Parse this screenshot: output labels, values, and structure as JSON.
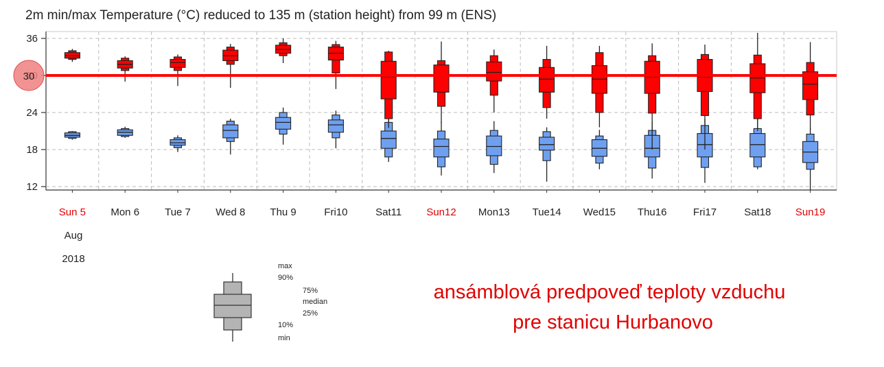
{
  "chart_data": {
    "type": "boxplot",
    "title": "2m min/max Temperature (°C) reduced to 135 m (station height) from 99 m (ENS)",
    "yticks": [
      12,
      18,
      24,
      30,
      36
    ],
    "ylim": [
      11.5,
      36.9
    ],
    "grid": true,
    "categories": [
      "Sun 5",
      "Mon 6",
      "Tue 7",
      "Wed 8",
      "Thu 9",
      "Fri10",
      "Sat11",
      "Sun12",
      "Mon13",
      "Tue14",
      "Wed15",
      "Thu16",
      "Fri17",
      "Sat18",
      "Sun19"
    ],
    "weekend_days": [
      "Sun 5",
      "Sun12",
      "Sun19"
    ],
    "xsub": [
      "Aug",
      "2018"
    ],
    "threshold": {
      "value": 30,
      "color": "#ff0000",
      "marker_label": "30"
    },
    "series": [
      {
        "name": "max",
        "color": "#ff0000",
        "stats": [
          {
            "min": 32.2,
            "p10": 32.6,
            "p25": 32.8,
            "median": 33.2,
            "p75": 33.7,
            "p90": 34.0,
            "max": 34.3
          },
          {
            "min": 29.0,
            "p10": 30.8,
            "p25": 31.2,
            "median": 31.8,
            "p75": 32.4,
            "p90": 32.8,
            "max": 33.1
          },
          {
            "min": 28.3,
            "p10": 30.8,
            "p25": 31.3,
            "median": 32.1,
            "p75": 32.6,
            "p90": 33.0,
            "max": 33.4
          },
          {
            "min": 28.0,
            "p10": 31.8,
            "p25": 32.4,
            "median": 33.2,
            "p75": 34.1,
            "p90": 34.6,
            "max": 35.1
          },
          {
            "min": 32.0,
            "p10": 33.2,
            "p25": 33.6,
            "median": 34.2,
            "p75": 34.9,
            "p90": 35.3,
            "max": 36.0
          },
          {
            "min": 27.8,
            "p10": 30.4,
            "p25": 32.5,
            "median": 33.6,
            "p75": 34.6,
            "p90": 35.0,
            "max": 35.6
          },
          {
            "min": 21.5,
            "p10": 23.0,
            "p25": 26.2,
            "median": 29.8,
            "p75": 32.3,
            "p90": 33.8,
            "max": 34.0
          },
          {
            "min": 22.3,
            "p10": 25.0,
            "p25": 27.3,
            "median": 30.0,
            "p75": 31.7,
            "p90": 32.4,
            "max": 35.5
          },
          {
            "min": 24.0,
            "p10": 26.8,
            "p25": 29.1,
            "median": 30.5,
            "p75": 32.2,
            "p90": 33.2,
            "max": 34.2
          },
          {
            "min": 23.0,
            "p10": 24.8,
            "p25": 27.3,
            "median": 29.4,
            "p75": 31.3,
            "p90": 32.6,
            "max": 34.8
          },
          {
            "min": 21.6,
            "p10": 24.0,
            "p25": 27.1,
            "median": 29.4,
            "p75": 31.6,
            "p90": 33.7,
            "max": 34.8
          },
          {
            "min": 18.0,
            "p10": 23.9,
            "p25": 27.1,
            "median": 29.8,
            "p75": 32.3,
            "p90": 33.2,
            "max": 35.2
          },
          {
            "min": 18.0,
            "p10": 23.5,
            "p25": 27.4,
            "median": 29.8,
            "p75": 32.6,
            "p90": 33.4,
            "max": 35.0
          },
          {
            "min": 21.0,
            "p10": 23.0,
            "p25": 27.2,
            "median": 29.6,
            "p75": 31.9,
            "p90": 33.3,
            "max": 36.9
          },
          {
            "min": 21.2,
            "p10": 23.6,
            "p25": 26.1,
            "median": 28.6,
            "p75": 30.6,
            "p90": 32.1,
            "max": 35.4
          }
        ]
      },
      {
        "name": "min",
        "color": "#6fa0f0",
        "stats": [
          {
            "min": 19.6,
            "p10": 19.8,
            "p25": 20.0,
            "median": 20.3,
            "p75": 20.7,
            "p90": 20.9,
            "max": 21.0
          },
          {
            "min": 19.9,
            "p10": 20.1,
            "p25": 20.3,
            "median": 20.8,
            "p75": 21.2,
            "p90": 21.4,
            "max": 21.7
          },
          {
            "min": 17.6,
            "p10": 18.3,
            "p25": 18.7,
            "median": 19.1,
            "p75": 19.6,
            "p90": 19.9,
            "max": 20.3
          },
          {
            "min": 17.2,
            "p10": 19.3,
            "p25": 19.9,
            "median": 21.1,
            "p75": 22.0,
            "p90": 22.6,
            "max": 23.0
          },
          {
            "min": 18.8,
            "p10": 20.5,
            "p25": 21.3,
            "median": 22.4,
            "p75": 23.2,
            "p90": 24.0,
            "max": 24.8
          },
          {
            "min": 18.2,
            "p10": 19.9,
            "p25": 20.8,
            "median": 22.0,
            "p75": 22.8,
            "p90": 23.6,
            "max": 24.3
          },
          {
            "min": 16.0,
            "p10": 16.8,
            "p25": 18.2,
            "median": 19.8,
            "p75": 21.0,
            "p90": 22.4,
            "max": 23.3
          },
          {
            "min": 13.8,
            "p10": 15.2,
            "p25": 16.8,
            "median": 18.5,
            "p75": 19.7,
            "p90": 21.0,
            "max": 22.5
          },
          {
            "min": 14.2,
            "p10": 15.6,
            "p25": 17.0,
            "median": 18.5,
            "p75": 20.2,
            "p90": 21.1,
            "max": 22.6
          },
          {
            "min": 12.8,
            "p10": 16.2,
            "p25": 17.9,
            "median": 18.8,
            "p75": 20.0,
            "p90": 20.9,
            "max": 21.6
          },
          {
            "min": 14.8,
            "p10": 15.8,
            "p25": 16.9,
            "median": 18.2,
            "p75": 19.6,
            "p90": 20.2,
            "max": 21.2
          },
          {
            "min": 13.3,
            "p10": 15.0,
            "p25": 16.8,
            "median": 18.2,
            "p75": 20.3,
            "p90": 21.1,
            "max": 22.6
          },
          {
            "min": 12.6,
            "p10": 15.1,
            "p25": 16.8,
            "median": 18.8,
            "p75": 20.6,
            "p90": 21.9,
            "max": 23.0
          },
          {
            "min": 14.8,
            "p10": 15.2,
            "p25": 16.8,
            "median": 18.8,
            "p75": 20.6,
            "p90": 21.4,
            "max": 23.4
          },
          {
            "min": 11.5,
            "p10": 14.8,
            "p25": 15.9,
            "median": 17.6,
            "p75": 19.3,
            "p90": 20.5,
            "max": 21.5
          }
        ]
      }
    ],
    "legend": {
      "labels": {
        "max": "max",
        "p90": "90%",
        "p75": "75%",
        "median": "median",
        "p25": "25%",
        "p10": "10%",
        "min": "min"
      }
    }
  },
  "annotation": {
    "line1": "ansámblová predpoveď teploty vzduchu",
    "line2": "pre stanicu Hurbanovo",
    "color": "#e00000"
  },
  "colors": {
    "weekday_label": "#222222",
    "weekend_label": "#e00000",
    "legend_fill": "#b4b4b4",
    "highlight_circle": "#f08080"
  }
}
